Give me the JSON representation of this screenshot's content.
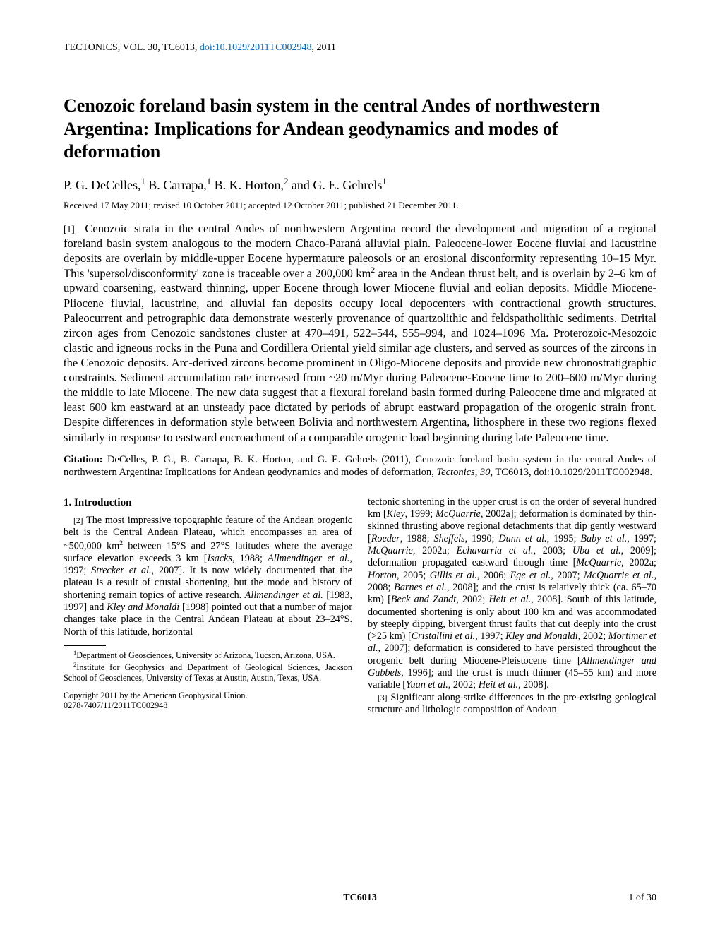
{
  "journal_line_prefix": "TECTONICS, VOL. 30, TC6013, ",
  "doi": "doi:10.1029/2011TC002948",
  "journal_year": ", 2011",
  "title": "Cenozoic foreland basin system in the central Andes of northwestern Argentina: Implications for Andean geodynamics and modes of deformation",
  "authors_html": "P. G. DeCelles,<span class='sup'>1</span> B. Carrapa,<span class='sup'>1</span> B. K. Horton,<span class='sup'>2</span> and G. E. Gehrels<span class='sup'>1</span>",
  "dates": "Received 17 May 2011; revised 10 October 2011; accepted 12 October 2011; published 21 December 2011.",
  "abstract_html": "<span class='para-num'>[1]</span>&nbsp;&nbsp;Cenozoic strata in the central Andes of northwestern Argentina record the development and migration of a regional foreland basin system analogous to the modern Chaco-Paraná alluvial plain. Paleocene-lower Eocene fluvial and lacustrine deposits are overlain by middle-upper Eocene hypermature paleosols or an erosional disconformity representing 10–15 Myr. This 'supersol/disconformity' zone is traceable over a 200,000 km<span class='sup'>2</span> area in the Andean thrust belt, and is overlain by 2–6 km of upward coarsening, eastward thinning, upper Eocene through lower Miocene fluvial and eolian deposits. Middle Miocene-Pliocene fluvial, lacustrine, and alluvial fan deposits occupy local depocenters with contractional growth structures. Paleocurrent and petrographic data demonstrate westerly provenance of quartzolithic and feldspatholithic sediments. Detrital zircon ages from Cenozoic sandstones cluster at 470–491, 522–544, 555–994, and 1024–1096 Ma. Proterozoic-Mesozoic clastic and igneous rocks in the Puna and Cordillera Oriental yield similar age clusters, and served as sources of the zircons in the Cenozoic deposits. Arc-derived zircons become prominent in Oligo-Miocene deposits and provide new chronostratigraphic constraints. Sediment accumulation rate increased from ~20 m/Myr during Paleocene-Eocene time to 200–600 m/Myr during the middle to late Miocene. The new data suggest that a flexural foreland basin formed during Paleocene time and migrated at least 600 km eastward at an unsteady pace dictated by periods of abrupt eastward propagation of the orogenic strain front. Despite differences in deformation style between Bolivia and northwestern Argentina, lithosphere in these two regions flexed similarly in response to eastward encroachment of a comparable orogenic load beginning during late Paleocene time.",
  "citation_label": "Citation:",
  "citation_html": "&nbsp;DeCelles, P. G., B. Carrapa, B. K. Horton, and G. E. Gehrels (2011), Cenozoic foreland basin system in the central Andes of northwestern Argentina: Implications for Andean geodynamics and modes of deformation, <span class='italic'>Tectonics</span>, <span class='italic'>30</span>, TC6013, doi:10.1029/2011TC002948.",
  "section1_head": "1.   Introduction",
  "col1_para_html": "<span class='para-num'>[2]</span>&nbsp;The most impressive topographic feature of the Andean orogenic belt is the Central Andean Plateau, which encompasses an area of ~500,000 km<span class='sup'>2</span> between 15°S and 27°S latitudes where the average surface elevation exceeds 3 km [<span class='italic'>Isacks</span>, 1988; <span class='italic'>Allmendinger et al.</span>, 1997; <span class='italic'>Strecker et al.</span>, 2007]. It is now widely documented that the plateau is a result of crustal shortening, but the mode and history of shortening remain topics of active research. <span class='italic'>Allmendinger et al.</span> [1983, 1997] and <span class='italic'>Kley and Monaldi</span> [1998] pointed out that a number of major changes take place in the Central Andean Plateau at about 23–24°S. North of this latitude, horizontal",
  "affil1_html": "<span class='sup'>1</span>Department of Geosciences, University of Arizona, Tucson, Arizona, USA.",
  "affil2_html": "<span class='sup'>2</span>Institute for Geophysics and Department of Geological Sciences, Jackson School of Geosciences, University of Texas at Austin, Austin, Texas, USA.",
  "copyright_line1": "Copyright 2011 by the American Geophysical Union.",
  "copyright_line2": "0278-7407/11/2011TC002948",
  "col2_para_html": "tectonic shortening in the upper crust is on the order of several hundred km [<span class='italic'>Kley</span>, 1999; <span class='italic'>McQuarrie</span>, 2002a]; deformation is dominated by thin-skinned thrusting above regional detachments that dip gently westward [<span class='italic'>Roeder</span>, 1988; <span class='italic'>Sheffels</span>, 1990; <span class='italic'>Dunn et al.</span>, 1995; <span class='italic'>Baby et al.</span>, 1997; <span class='italic'>McQuarrie</span>, 2002a; <span class='italic'>Echavarria et al.</span>, 2003; <span class='italic'>Uba et al.</span>, 2009]; deformation propagated eastward through time [<span class='italic'>McQuarrie</span>, 2002a; <span class='italic'>Horton</span>, 2005; <span class='italic'>Gillis et al.</span>, 2006; <span class='italic'>Ege et al.</span>, 2007; <span class='italic'>McQuarrie et al.</span>, 2008; <span class='italic'>Barnes et al.</span>, 2008]; and the crust is relatively thick (ca. 65–70 km) [<span class='italic'>Beck and Zandt</span>, 2002; <span class='italic'>Heit et al.</span>, 2008]. South of this latitude, documented shortening is only about 100 km and was accommodated by steeply dipping, bivergent thrust faults that cut deeply into the crust (&gt;25 km) [<span class='italic'>Cristallini et al.</span>, 1997; <span class='italic'>Kley and Monaldi</span>, 2002; <span class='italic'>Mortimer et al.</span>, 2007]; deformation is considered to have persisted throughout the orogenic belt during Miocene-Pleistocene time [<span class='italic'>Allmendinger and Gubbels</span>, 1996]; and the crust is much thinner (45–55 km) and more variable [<span class='italic'>Yuan et al.</span>, 2002; <span class='italic'>Heit et al.</span>, 2008].",
  "col2_para2_html": "<span class='para-num'>[3]</span>&nbsp;Significant along-strike differences in the pre-existing geological structure and lithologic composition of Andean",
  "footer_center": "TC6013",
  "footer_right": "1 of 30"
}
